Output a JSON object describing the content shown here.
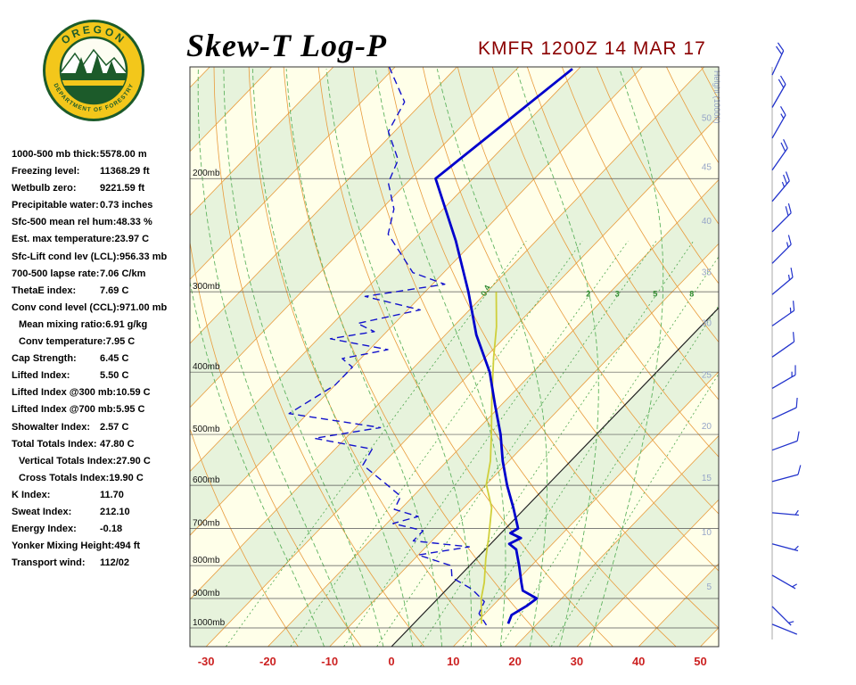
{
  "header": {
    "title": "Skew-T Log-P",
    "station_line": "KMFR 1200Z 14 MAR 17",
    "logo_top": "OREGON",
    "logo_bottom": "DEPARTMENT OF FORESTRY"
  },
  "stats": [
    {
      "label": "1000-500 mb thick:",
      "value": "5578.00 m"
    },
    {
      "label": "Freezing level:",
      "value": "11368.29 ft"
    },
    {
      "label": "Wetbulb zero:",
      "value": "9221.59 ft"
    },
    {
      "label": "Precipitable water:",
      "value": "0.73 inches"
    },
    {
      "label": "Sfc-500 mean rel hum:",
      "value": "48.33 %"
    },
    {
      "label": "Est. max temperature:",
      "value": "23.97 C"
    },
    {
      "label": "Sfc-Lift cond lev (LCL):",
      "value": "956.33 mb"
    },
    {
      "label": "700-500 lapse rate:",
      "value": "7.06 C/km"
    },
    {
      "label": "ThetaE index:",
      "value": "7.69 C"
    },
    {
      "label": "Conv cond level (CCL):",
      "value": "971.00 mb"
    },
    {
      "label": "Mean mixing ratio:",
      "value": "6.91 g/kg",
      "indent": true
    },
    {
      "label": "Conv temperature:",
      "value": "7.95 C",
      "indent": true
    },
    {
      "label": "Cap Strength:",
      "value": "6.45 C"
    },
    {
      "label": "Lifted Index:",
      "value": "5.50 C"
    },
    {
      "label": "Lifted Index @300 mb:",
      "value": "10.59 C"
    },
    {
      "label": "Lifted Index @700 mb:",
      "value": "5.95 C"
    },
    {
      "label": "Showalter Index:",
      "value": "2.57 C"
    },
    {
      "label": "Total Totals Index:",
      "value": "47.80 C"
    },
    {
      "label": "Vertical Totals Index:",
      "value": "27.90 C",
      "indent": true
    },
    {
      "label": "Cross Totals Index:",
      "value": "19.90 C",
      "indent": true
    },
    {
      "label": "K Index:",
      "value": "11.70"
    },
    {
      "label": "Sweat Index:",
      "value": "212.10"
    },
    {
      "label": "Energy Index:",
      "value": "-0.18"
    },
    {
      "label": "Yonker Mixing Height:",
      "value": "494 ft"
    },
    {
      "label": "Transport wind:",
      "value": "112/02"
    }
  ],
  "chart_data": {
    "type": "skew-t-log-p",
    "station": "KMFR",
    "valid_time": "1200Z 14 MAR 17",
    "pressure_ticks_mb": [
      200,
      300,
      400,
      500,
      600,
      700,
      800,
      900,
      1000
    ],
    "pressure_tick_suffix": "mb",
    "temp_ticks_c": [
      -30,
      -20,
      -10,
      0,
      10,
      20,
      30,
      40,
      50
    ],
    "height_scale": {
      "label": "Height (1000ft)",
      "ticks": [
        {
          "kft": 5,
          "p": 863
        },
        {
          "kft": 10,
          "p": 710
        },
        {
          "kft": 15,
          "p": 585
        },
        {
          "kft": 20,
          "p": 486
        },
        {
          "kft": 25,
          "p": 404
        },
        {
          "kft": 30,
          "p": 336
        },
        {
          "kft": 35,
          "p": 280
        },
        {
          "kft": 40,
          "p": 233
        },
        {
          "kft": 45,
          "p": 192
        },
        {
          "kft": 50,
          "p": 161
        }
      ]
    },
    "isotherms_c": {
      "from": -120,
      "to": 60,
      "step": 10,
      "highlight_zero": true
    },
    "dry_adiabats_theta_c": {
      "from": -20,
      "to": 140,
      "step": 10
    },
    "moist_adiabats_thetaw_c": {
      "from": -15,
      "to": 30,
      "step": 5
    },
    "mixing_ratio_lines_gkg": [
      0.4,
      1,
      2,
      3,
      5,
      8,
      12,
      20
    ],
    "mixing_ratio_labels": [
      {
        "text": "0.4",
        "w": 0.4,
        "p": 300,
        "rotated": true
      },
      {
        "text": "2",
        "w": 2,
        "p": 305,
        "rotated": false
      },
      {
        "text": "3",
        "w": 3,
        "p": 305,
        "rotated": false
      },
      {
        "text": "5",
        "w": 5,
        "p": 305,
        "rotated": false
      },
      {
        "text": "8",
        "w": 8,
        "p": 305,
        "rotated": false
      }
    ],
    "temperature_profile": [
      [
        135,
        -61
      ],
      [
        200,
        -66
      ],
      [
        250,
        -53
      ],
      [
        300,
        -43
      ],
      [
        350,
        -35
      ],
      [
        400,
        -27
      ],
      [
        450,
        -21
      ],
      [
        500,
        -15.5
      ],
      [
        550,
        -11
      ],
      [
        600,
        -6.5
      ],
      [
        650,
        -2
      ],
      [
        700,
        2
      ],
      [
        712,
        1.5
      ],
      [
        725,
        4
      ],
      [
        740,
        3
      ],
      [
        755,
        5
      ],
      [
        800,
        8
      ],
      [
        850,
        11
      ],
      [
        875,
        12.5
      ],
      [
        900,
        16
      ],
      [
        925,
        15.5
      ],
      [
        955,
        14.5
      ],
      [
        985,
        15.3
      ]
    ],
    "dewpoint_profile": [
      [
        134,
        -91
      ],
      [
        152,
        -83
      ],
      [
        169,
        -81
      ],
      [
        187,
        -75
      ],
      [
        203,
        -73
      ],
      [
        223,
        -68
      ],
      [
        244,
        -65
      ],
      [
        265,
        -59
      ],
      [
        280,
        -55
      ],
      [
        292,
        -48
      ],
      [
        305,
        -59
      ],
      [
        320,
        -48
      ],
      [
        336,
        -56
      ],
      [
        346,
        -52
      ],
      [
        355,
        -58
      ],
      [
        369,
        -47
      ],
      [
        381,
        -53
      ],
      [
        393,
        -50
      ],
      [
        419,
        -50
      ],
      [
        464,
        -53
      ],
      [
        488,
        -36
      ],
      [
        507,
        -45
      ],
      [
        527,
        -34
      ],
      [
        558,
        -33
      ],
      [
        599,
        -26
      ],
      [
        624,
        -22
      ],
      [
        654,
        -21
      ],
      [
        671,
        -16
      ],
      [
        688,
        -19
      ],
      [
        706,
        -13
      ],
      [
        732,
        -13
      ],
      [
        748,
        -3
      ],
      [
        770,
        -10
      ],
      [
        800,
        -3
      ],
      [
        835,
        -1
      ],
      [
        870,
        4
      ],
      [
        910,
        8
      ],
      [
        950,
        9
      ],
      [
        990,
        12
      ]
    ],
    "parcel_trace": [
      [
        985,
        11
      ],
      [
        900,
        7
      ],
      [
        850,
        5
      ],
      [
        780,
        1.5
      ],
      [
        720,
        -1.5
      ],
      [
        650,
        -5.5
      ],
      [
        598,
        -10
      ],
      [
        550,
        -13
      ],
      [
        500,
        -17
      ],
      [
        440,
        -22.5
      ],
      [
        380,
        -28.6
      ],
      [
        340,
        -33
      ],
      [
        300,
        -38.5
      ]
    ],
    "wind_barbs": [
      [
        138,
        25,
        20
      ],
      [
        155,
        30,
        20
      ],
      [
        173,
        30,
        15
      ],
      [
        194,
        35,
        20
      ],
      [
        217,
        40,
        25
      ],
      [
        242,
        45,
        20
      ],
      [
        271,
        45,
        15
      ],
      [
        303,
        50,
        15
      ],
      [
        339,
        55,
        15
      ],
      [
        379,
        55,
        10
      ],
      [
        424,
        60,
        15
      ],
      [
        473,
        65,
        10
      ],
      [
        529,
        70,
        10
      ],
      [
        592,
        75,
        10
      ],
      [
        662,
        95,
        5
      ],
      [
        740,
        105,
        5
      ],
      [
        828,
        120,
        5
      ],
      [
        926,
        135,
        5
      ],
      [
        987,
        112,
        2
      ]
    ],
    "colors": {
      "chart_bg": "#FFFFE9",
      "band": "#E7F3DC",
      "isotherm": "#E89B3C",
      "zero_isotherm": "#222222",
      "dry_adiabat": "#E89B3C",
      "moist_adiabat": "#5FB35F",
      "mixing_ratio": "#4DA64D",
      "mixing_label": "#2E8B2E",
      "grid": "#555555",
      "pressure_label": "#111111",
      "height_label": "#96A5C8",
      "temp_label": "#CC2222",
      "temperature": "#0000CC",
      "dewpoint": "#1111CC",
      "parcel": "#CFCF3A",
      "barb": "#2233CC",
      "border": "#333333"
    }
  }
}
